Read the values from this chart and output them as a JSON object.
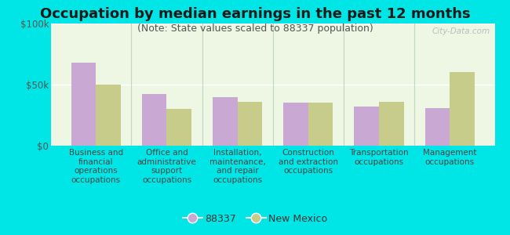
{
  "title": "Occupation by median earnings in the past 12 months",
  "subtitle": "(Note: State values scaled to 88337 population)",
  "categories": [
    "Business and\nfinancial\noperations\noccupations",
    "Office and\nadministrative\nsupport\noccupations",
    "Installation,\nmaintenance,\nand repair\noccupations",
    "Construction\nand extraction\noccupations",
    "Transportation\noccupations",
    "Management\noccupations"
  ],
  "values_88337": [
    68000,
    42000,
    40000,
    35000,
    32000,
    31000
  ],
  "values_nm": [
    50000,
    30000,
    36000,
    35000,
    36000,
    60000
  ],
  "color_88337": "#c9a8d4",
  "color_nm": "#c8cc8a",
  "ylim": [
    0,
    100000
  ],
  "yticks": [
    0,
    50000,
    100000
  ],
  "ytick_labels": [
    "$0",
    "$50k",
    "$100k"
  ],
  "background_color": "#00e5e5",
  "plot_bg_color": "#eef6e4",
  "legend_label_88337": "88337",
  "legend_label_nm": "New Mexico",
  "watermark": "City-Data.com",
  "bar_width": 0.35,
  "title_fontsize": 13,
  "subtitle_fontsize": 9,
  "axis_label_fontsize": 7.5,
  "tick_fontsize": 8.5
}
